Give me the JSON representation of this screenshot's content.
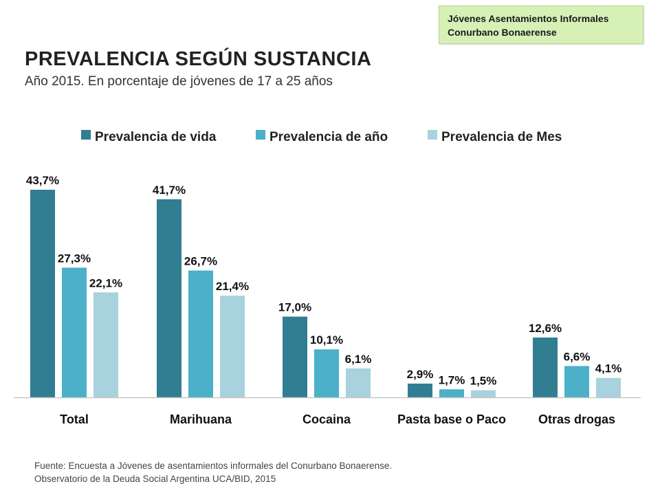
{
  "header_badge": {
    "line1": "Jóvenes Asentamientos Informales",
    "line2": "Conurbano Bonaerense"
  },
  "chart_data": {
    "type": "bar",
    "title": "PREVALENCIA SEGÚN SUSTANCIA",
    "subtitle": "Año 2015.  En porcentaje de jóvenes de 17 a 25 años",
    "categories": [
      "Total",
      "Marihuana",
      "Cocaina",
      "Pasta base o Paco",
      "Otras drogas"
    ],
    "series": [
      {
        "name": "Prevalencia de vida",
        "values": [
          43.7,
          41.7,
          17.0,
          2.9,
          12.6
        ],
        "labels": [
          "43,7%",
          "41,7%",
          "17,0%",
          "2,9%",
          "12,6%"
        ],
        "color": "#317e92"
      },
      {
        "name": "Prevalencia de año",
        "values": [
          27.3,
          26.7,
          10.1,
          1.7,
          6.6
        ],
        "labels": [
          "27,3%",
          "26,7%",
          "10,1%",
          "1,7%",
          "6,6%"
        ],
        "color": "#4bb0c8"
      },
      {
        "name": "Prevalencia de Mes",
        "values": [
          22.1,
          21.4,
          6.1,
          1.5,
          4.1
        ],
        "labels": [
          "22,1%",
          "21,4%",
          "6,1%",
          "1,5%",
          "4,1%"
        ],
        "color": "#a8d2de"
      }
    ],
    "ylim": [
      0,
      45
    ],
    "grid": false,
    "legend_position": "top"
  },
  "source": {
    "line1": "Fuente: Encuesta a Jóvenes de asentamientos informales del Conurbano Bonaerense.",
    "line2": "Observatorio de la Deuda Social Argentina UCA/BID, 2015"
  }
}
